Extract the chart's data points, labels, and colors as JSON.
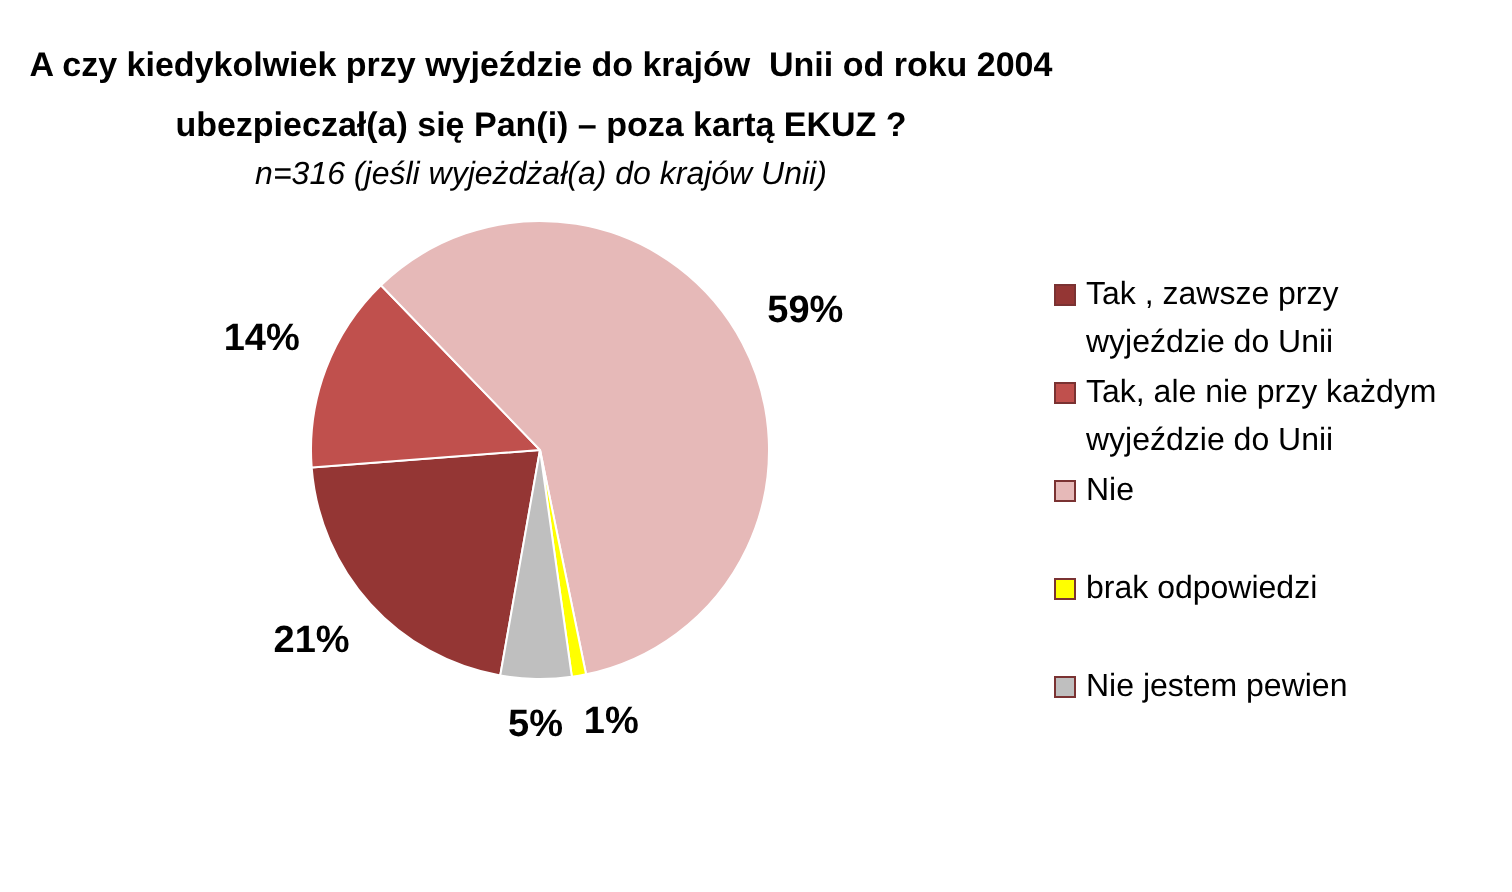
{
  "chart_data": {
    "type": "pie",
    "title": "A czy kiedykolwiek przy wyjeździe do krajów  Unii od roku 2004 ubezpieczał(a) się Pan(i) – poza kartą EKUZ ?",
    "subtitle": "n=316 (jeśli wyjeżdżał(a) do krajów Unii)",
    "categories": [
      "Tak , zawsze przy wyjeździe do Unii",
      "Tak, ale nie przy każdym wyjeździe do Unii",
      "Nie",
      "brak odpowiedzi",
      "Nie jestem pewien"
    ],
    "values": [
      21,
      14,
      59,
      1,
      5
    ],
    "colors": [
      "#943634",
      "#c0504d",
      "#e6b9b8",
      "#ffff00",
      "#bfbfbf"
    ],
    "value_labels": [
      "21%",
      "14%",
      "59%",
      "1%",
      "5%"
    ],
    "legend": "right"
  }
}
